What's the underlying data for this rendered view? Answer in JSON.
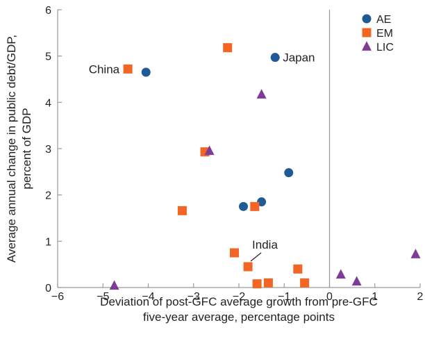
{
  "chart_data": {
    "type": "scatter",
    "xlabel": [
      "Deviation of post-GFC average growth from pre-GFC",
      "five-year average, percentage points"
    ],
    "ylabel": [
      "Average annual change in public debt/GDP,",
      "percent of GDP"
    ],
    "xlim": [
      -6,
      2
    ],
    "ylim": [
      0,
      6
    ],
    "xticks": [
      -6,
      -5,
      -4,
      -3,
      -2,
      -1,
      0,
      1,
      2
    ],
    "yticks": [
      0,
      1,
      2,
      3,
      4,
      5,
      6
    ],
    "xtick_labels": [
      "−6",
      "−5",
      "−4",
      "−3",
      "−2",
      "−1",
      "0",
      "1",
      "2"
    ],
    "ytick_labels": [
      "0",
      "1",
      "2",
      "3",
      "4",
      "5",
      "6"
    ],
    "grid": false,
    "vertical_reference_line_x": 0,
    "legend_position": "top-right",
    "series": [
      {
        "name": "AE",
        "marker": "circle",
        "color": "#1f5a96",
        "points": [
          {
            "x": -4.05,
            "y": 4.65
          },
          {
            "x": -1.2,
            "y": 4.97
          },
          {
            "x": -0.9,
            "y": 2.48
          },
          {
            "x": -1.5,
            "y": 1.85
          },
          {
            "x": -1.9,
            "y": 1.75
          }
        ]
      },
      {
        "name": "EM",
        "marker": "square",
        "color": "#f26522",
        "points": [
          {
            "x": -4.45,
            "y": 4.72
          },
          {
            "x": -2.25,
            "y": 5.18
          },
          {
            "x": -2.75,
            "y": 2.93
          },
          {
            "x": -3.25,
            "y": 1.66
          },
          {
            "x": -1.65,
            "y": 1.75
          },
          {
            "x": -2.1,
            "y": 0.75
          },
          {
            "x": -1.8,
            "y": 0.45
          },
          {
            "x": -1.6,
            "y": 0.08
          },
          {
            "x": -1.35,
            "y": 0.1
          },
          {
            "x": -0.7,
            "y": 0.4
          },
          {
            "x": -0.55,
            "y": 0.1
          }
        ]
      },
      {
        "name": "LIC",
        "marker": "triangle",
        "color": "#7d3c98",
        "points": [
          {
            "x": -1.5,
            "y": 4.17
          },
          {
            "x": -2.65,
            "y": 2.95
          },
          {
            "x": -4.75,
            "y": 0.04
          },
          {
            "x": 0.25,
            "y": 0.28
          },
          {
            "x": 0.6,
            "y": 0.13
          },
          {
            "x": 1.9,
            "y": 0.72
          }
        ]
      }
    ],
    "annotations": [
      {
        "text": "China",
        "x": -4.45,
        "y": 4.72,
        "side": "left"
      },
      {
        "text": "Japan",
        "x": -1.2,
        "y": 4.97,
        "side": "right"
      },
      {
        "text": "India",
        "x": -1.8,
        "y": 0.45,
        "side": "above-leader"
      }
    ]
  }
}
